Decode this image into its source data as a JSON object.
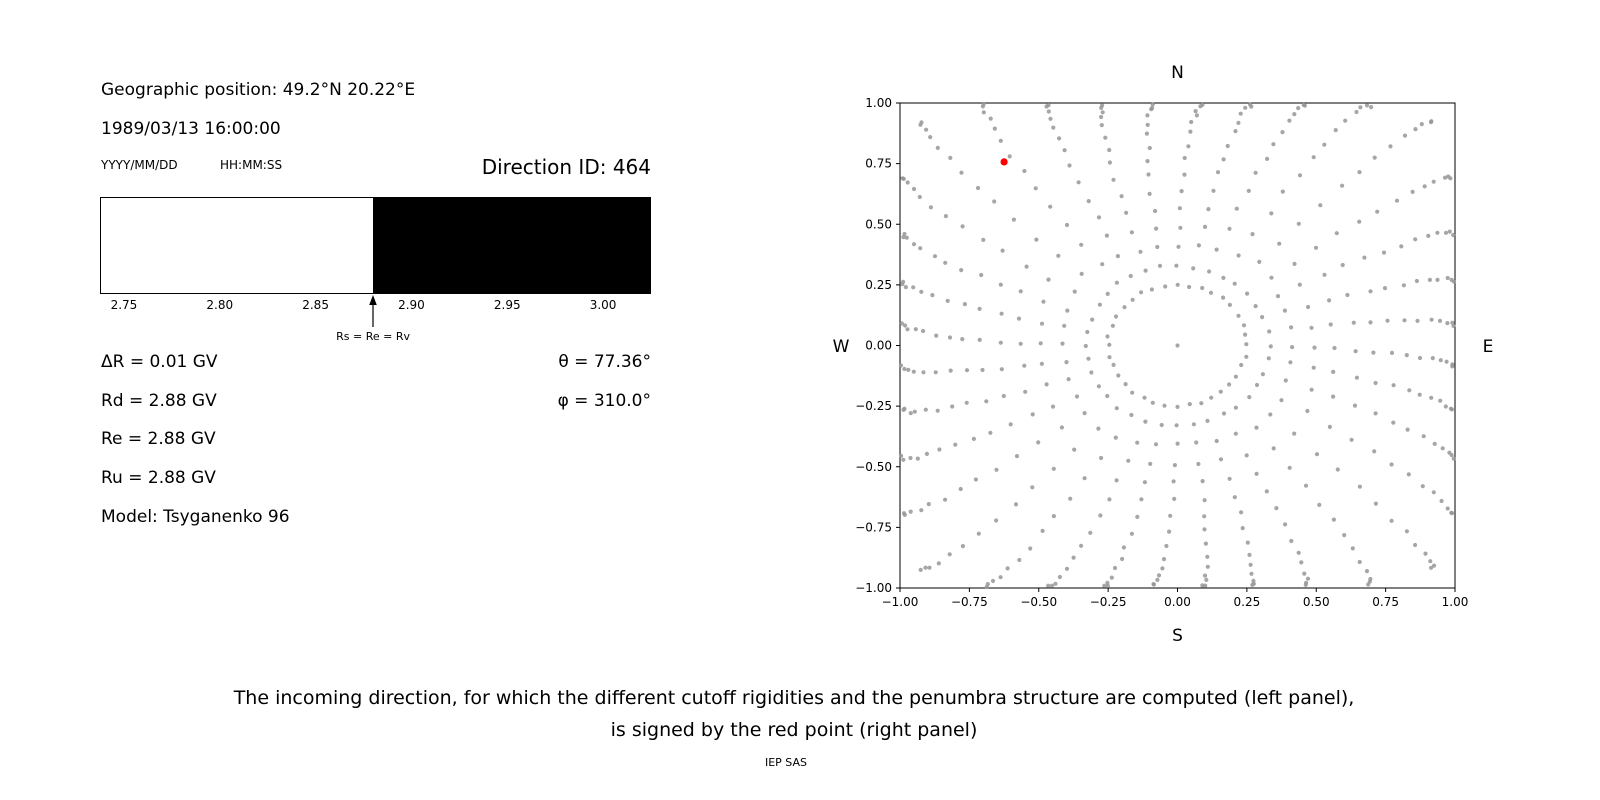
{
  "page": {
    "caption_line1": "The incoming direction, for which the different cutoff rigidities and the penumbra structure are computed (left panel),",
    "caption_line2": "is signed by the red point (right panel)",
    "credit": "IEP SAS"
  },
  "info_panel": {
    "geographic_position": "Geographic position: 49.2°N 20.22°E",
    "datetime": "1989/03/13 16:00:00",
    "date_format_label": "YYYY/MM/DD",
    "time_format_label": "HH:MM:SS",
    "direction_id": "Direction ID: 464",
    "delta_r": "ΔR = 0.01 GV",
    "rd": "Rd = 2.88 GV",
    "re": "Re = 2.88 GV",
    "ru": "Ru = 2.88 GV",
    "model": "Model: Tsyganenko 96",
    "theta": "θ = 77.36°",
    "phi": "φ = 310.0°"
  },
  "chart_data": [
    {
      "type": "bar",
      "title": "",
      "xlabel": "",
      "xlim": [
        2.7375,
        3.025
      ],
      "xticks": [
        2.75,
        2.8,
        2.85,
        2.9,
        2.95,
        3.0
      ],
      "xtick_labels": [
        "2.75",
        "2.80",
        "2.85",
        "2.90",
        "2.95",
        "3.00"
      ],
      "segments": [
        {
          "from": 2.7375,
          "to": 2.88,
          "color": "#ffffff"
        },
        {
          "from": 2.88,
          "to": 3.025,
          "color": "#000000"
        }
      ],
      "annotation": {
        "x": 2.88,
        "label": "Rs = Re = Rv"
      }
    },
    {
      "type": "scatter",
      "xlim": [
        -1.0,
        1.0
      ],
      "ylim": [
        -1.0,
        1.0
      ],
      "xticks": [
        -1.0,
        -0.75,
        -0.5,
        -0.25,
        0,
        0.25,
        0.5,
        0.75,
        1.0
      ],
      "xtick_labels": [
        "−1.00",
        "−0.75",
        "−0.50",
        "−0.25",
        "0.00",
        "0.25",
        "0.50",
        "0.75",
        "1.00"
      ],
      "yticks": [
        -1.0,
        -0.75,
        -0.5,
        -0.25,
        0,
        0.25,
        0.5,
        0.75,
        1.0
      ],
      "ytick_labels": [
        "−1.00",
        "−0.75",
        "−0.50",
        "−0.25",
        "0.00",
        "0.25",
        "0.50",
        "0.75",
        "1.00"
      ],
      "compass": {
        "top": "N",
        "bottom": "S",
        "left": "W",
        "right": "E"
      },
      "grid_points": {
        "color": "#969696",
        "center_point": [
          0,
          0
        ],
        "inner_ring_radius": 0.25,
        "inner_ring_count": 36,
        "azimuth_start_deg": 0,
        "azimuth_step_deg": 10,
        "azimuth_count": 36,
        "ray_points": 14,
        "ray_r_min": 0.33,
        "ray_r_max": 1.3,
        "curvature_drift_deg": 5
      },
      "red_point": {
        "x": -0.625,
        "y": 0.757,
        "color": "#ff0000"
      }
    }
  ]
}
